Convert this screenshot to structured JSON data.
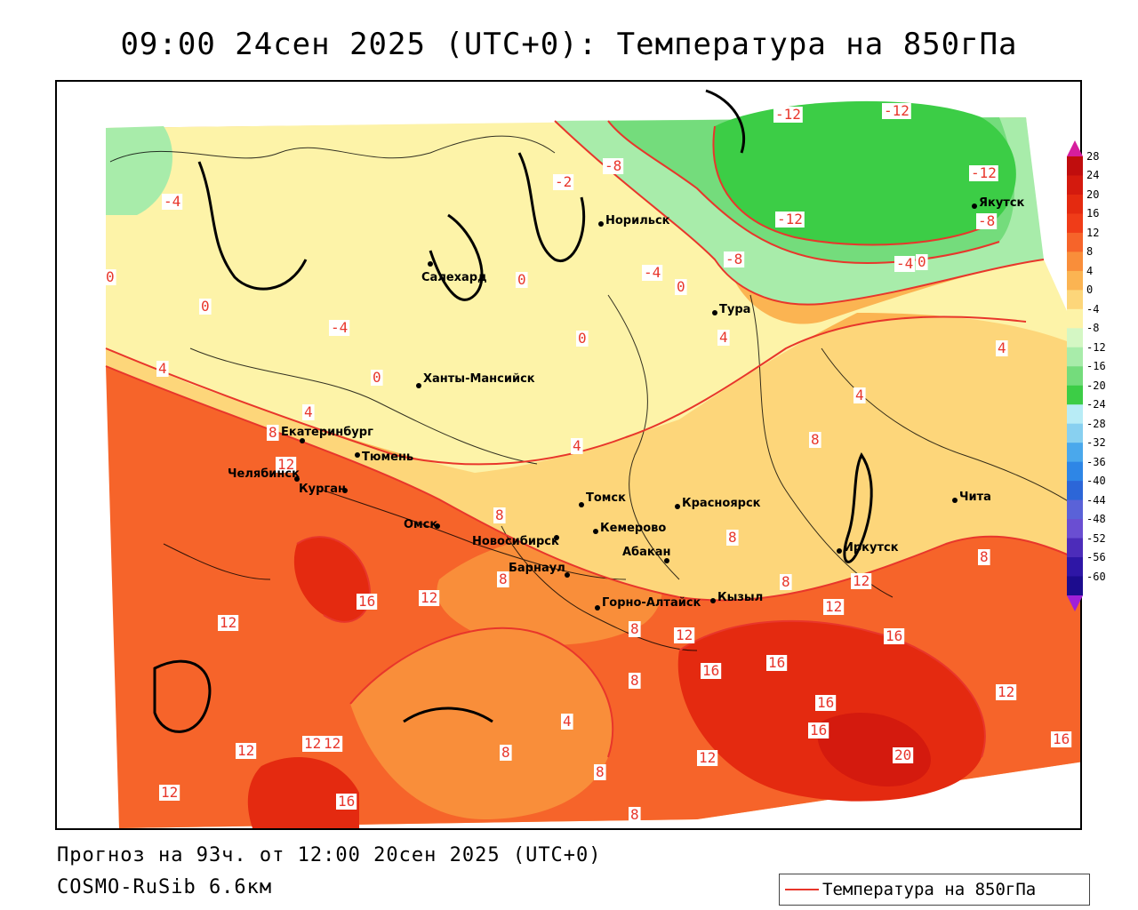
{
  "title": "09:00 24сен 2025 (UTC+0): Температура на 850гПа",
  "forecast_info": "Прогноз на 93ч. от 12:00 20сен 2025 (UTC+0)",
  "model_name": "COSMO-RuSib 6.6км",
  "legend": {
    "label": "Температура на 850гПа",
    "line_color": "#e8362b"
  },
  "colorbar": {
    "ticks": [
      "28",
      "24",
      "20",
      "16",
      "12",
      "8",
      "4",
      "0",
      "-4",
      "-8",
      "-12",
      "-16",
      "-20",
      "-24",
      "-28",
      "-32",
      "-36",
      "-40",
      "-44",
      "-48",
      "-52",
      "-56",
      "-60"
    ],
    "colors": [
      "#c00d0d",
      "#d41a0e",
      "#e42a10",
      "#f03c18",
      "#f6642a",
      "#f98e3a",
      "#fbb452",
      "#fdd67a",
      "#fdf3a8",
      "#d4f7c4",
      "#a8ecaa",
      "#74dc7c",
      "#3ccd46",
      "#b8ecf6",
      "#88d0f0",
      "#4aa8ec",
      "#2e86e6",
      "#2c66d8",
      "#5a62d8",
      "#6a4ed2",
      "#4c2cba",
      "#2e16a6",
      "#1c0c8e"
    ],
    "top_arrow_color": "#d61e9e",
    "bottom_arrow_color": "#a020d8"
  },
  "cities": [
    {
      "name": "Салехард"
    },
    {
      "name": "Норильск"
    },
    {
      "name": "Якутск"
    },
    {
      "name": "Тура"
    },
    {
      "name": "Ханты-Мансийск"
    },
    {
      "name": "Екатеринбург"
    },
    {
      "name": "Тюмень"
    },
    {
      "name": "Челябинск"
    },
    {
      "name": "Курган"
    },
    {
      "name": "Омск"
    },
    {
      "name": "Новосибирск"
    },
    {
      "name": "Томск"
    },
    {
      "name": "Кемерово"
    },
    {
      "name": "Красноярск"
    },
    {
      "name": "Барнаул"
    },
    {
      "name": "Абакан"
    },
    {
      "name": "Горно-Алтайск"
    },
    {
      "name": "Кызыл"
    },
    {
      "name": "Иркутск"
    },
    {
      "name": "Чита"
    }
  ],
  "contour_labels": [
    {
      "text": "-12"
    },
    {
      "text": "-12"
    },
    {
      "text": "-12"
    },
    {
      "text": "-12"
    },
    {
      "text": "-8"
    },
    {
      "text": "-8"
    },
    {
      "text": "-8"
    },
    {
      "text": "-4"
    },
    {
      "text": "-4"
    },
    {
      "text": "-4"
    },
    {
      "text": "-4"
    },
    {
      "text": "-2"
    },
    {
      "text": "0"
    },
    {
      "text": "0"
    },
    {
      "text": "0"
    },
    {
      "text": "0"
    },
    {
      "text": "0"
    },
    {
      "text": "0"
    },
    {
      "text": "0"
    },
    {
      "text": "4"
    },
    {
      "text": "4"
    },
    {
      "text": "4"
    },
    {
      "text": "4"
    },
    {
      "text": "4"
    },
    {
      "text": "4"
    },
    {
      "text": "4"
    },
    {
      "text": "8"
    },
    {
      "text": "8"
    },
    {
      "text": "8"
    },
    {
      "text": "8"
    },
    {
      "text": "8"
    },
    {
      "text": "8"
    },
    {
      "text": "8"
    },
    {
      "text": "8"
    },
    {
      "text": "8"
    },
    {
      "text": "8"
    },
    {
      "text": "8"
    },
    {
      "text": "8"
    },
    {
      "text": "12"
    },
    {
      "text": "12"
    },
    {
      "text": "12"
    },
    {
      "text": "12"
    },
    {
      "text": "12"
    },
    {
      "text": "12"
    },
    {
      "text": "12"
    },
    {
      "text": "12"
    },
    {
      "text": "12"
    },
    {
      "text": "12"
    },
    {
      "text": "12"
    },
    {
      "text": "12"
    },
    {
      "text": "16"
    },
    {
      "text": "16"
    },
    {
      "text": "16"
    },
    {
      "text": "16"
    },
    {
      "text": "16"
    },
    {
      "text": "16"
    },
    {
      "text": "16"
    },
    {
      "text": "16"
    },
    {
      "text": "20"
    }
  ]
}
